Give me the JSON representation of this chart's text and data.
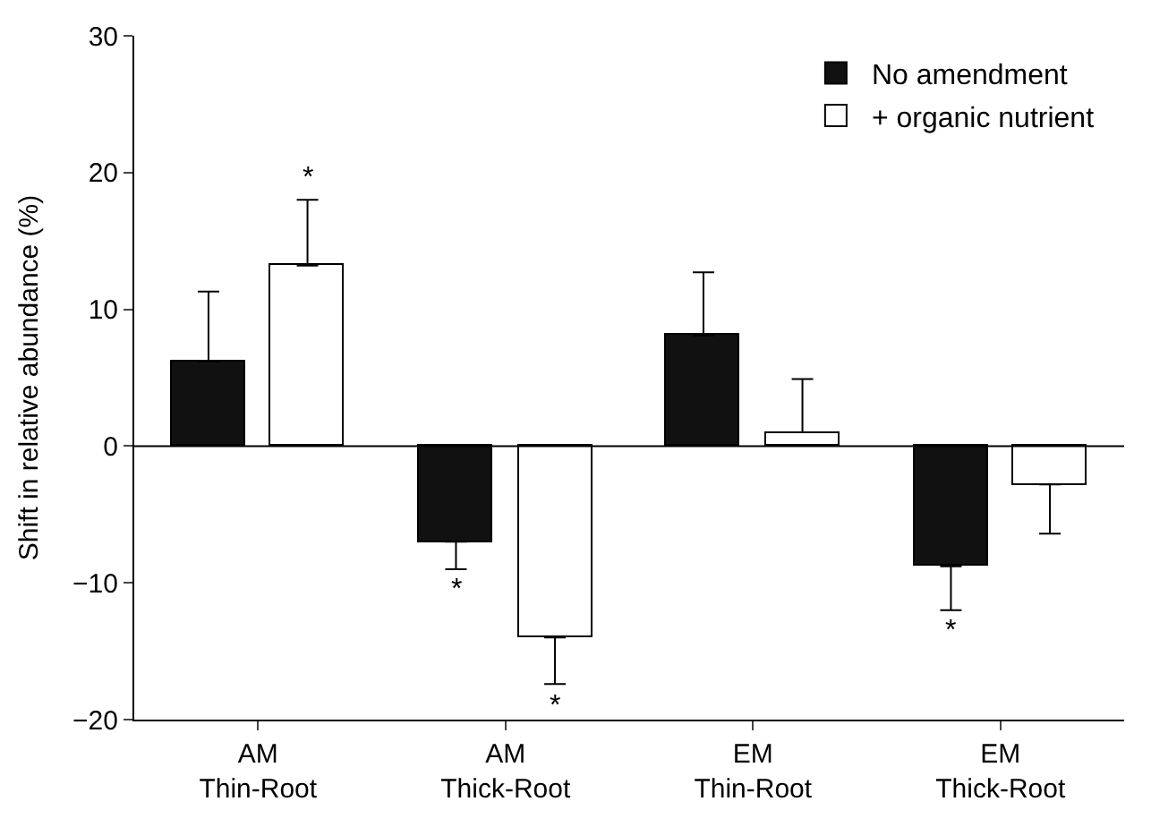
{
  "chart_data": {
    "type": "bar",
    "categories": [
      "AM\nThin-Root",
      "AM\nThick-Root",
      "EM\nThin-Root",
      "EM\nThick-Root"
    ],
    "ylabel": "Shift in relative abundance (%)",
    "ylim": [
      -20,
      30
    ],
    "yticks": [
      -20,
      -10,
      0,
      10,
      20,
      30
    ],
    "series": [
      {
        "name": "No amendment",
        "color": "#111111",
        "values": [
          6.2,
          -7.0,
          8.1,
          -8.8
        ],
        "errors": [
          [
            6.2,
            11.3
          ],
          [
            -9.0,
            -7.0
          ],
          [
            8.1,
            12.7
          ],
          [
            -12.0,
            -8.8
          ]
        ],
        "value_labels": [
          null,
          "*",
          null,
          "*"
        ]
      },
      {
        "name": "+ organic nutrient",
        "color": "#ffffff",
        "values": [
          13.2,
          -14.0,
          1.0,
          -2.8
        ],
        "errors": [
          [
            13.2,
            18.0
          ],
          [
            -17.4,
            -14.0
          ],
          [
            1.0,
            4.9
          ],
          [
            -6.4,
            -2.8
          ]
        ],
        "value_labels": [
          "*",
          "*",
          null,
          null
        ]
      }
    ],
    "ref_lines": [
      {
        "axis": "y",
        "value": 0
      }
    ],
    "legend": "top right"
  }
}
